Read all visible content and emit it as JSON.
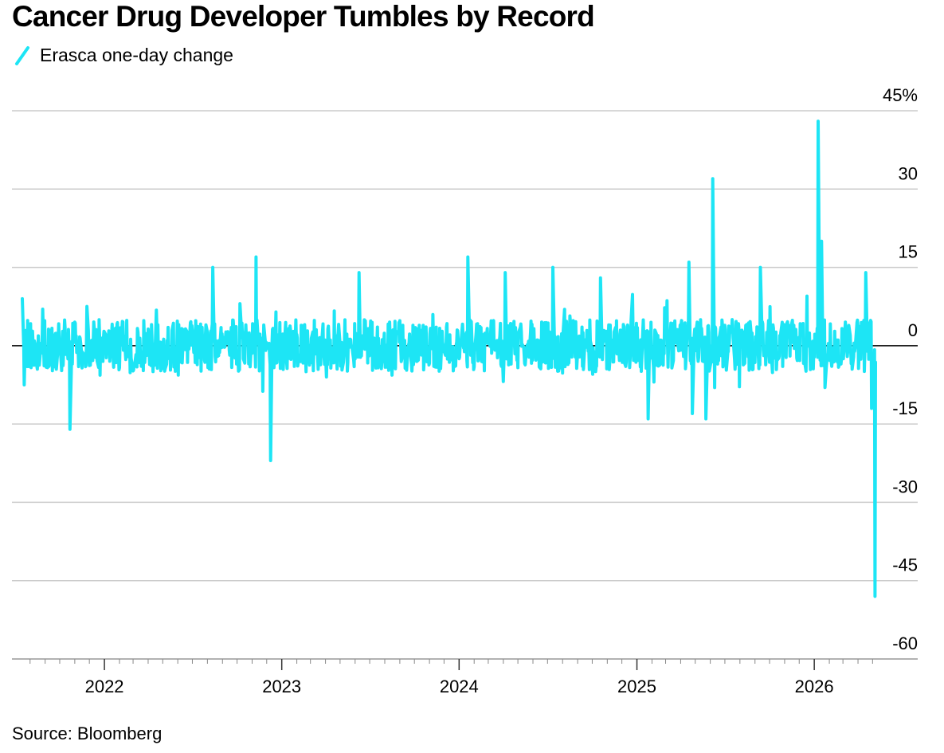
{
  "title": "Cancer Drug Developer Tumbles by Record",
  "source": "Source: Bloomberg",
  "chart_data": {
    "type": "line",
    "title": "Cancer Drug Developer Tumbles by Record",
    "xlabel": "",
    "ylabel": "",
    "series": [
      {
        "name": "Erasca one-day change",
        "color": "#1de5f5"
      }
    ],
    "y_ticks": [
      45,
      30,
      15,
      0,
      -15,
      -30,
      -45,
      -60
    ],
    "y_tick_labels": [
      "45%",
      "30",
      "15",
      "0",
      "-15",
      "-30",
      "-45",
      "-60"
    ],
    "ylim": [
      -60,
      45
    ],
    "y_axis_side": "right",
    "x_range": [
      "2021-07-16",
      "2026-05-07"
    ],
    "x_ticks": [
      "2022-01-01",
      "2023-01-01",
      "2024-01-01",
      "2025-01-01",
      "2026-01-01"
    ],
    "x_tick_labels": [
      "2022",
      "2023",
      "2024",
      "2025",
      "2026"
    ],
    "grid": "horizontal",
    "legend": "top-left",
    "noise_amplitude_pct": 5,
    "notable_points": [
      {
        "date": "2021-07-16",
        "value": 9
      },
      {
        "date": "2021-10-22",
        "value": -16
      },
      {
        "date": "2022-08-12",
        "value": 15
      },
      {
        "date": "2022-11-09",
        "value": 17
      },
      {
        "date": "2022-12-09",
        "value": -22
      },
      {
        "date": "2023-06-09",
        "value": 14
      },
      {
        "date": "2024-01-19",
        "value": 17
      },
      {
        "date": "2024-04-05",
        "value": 14
      },
      {
        "date": "2024-07-12",
        "value": 15
      },
      {
        "date": "2024-10-18",
        "value": 13
      },
      {
        "date": "2025-01-24",
        "value": -14
      },
      {
        "date": "2025-04-18",
        "value": 16
      },
      {
        "date": "2025-04-25",
        "value": -13
      },
      {
        "date": "2025-05-23",
        "value": -14
      },
      {
        "date": "2025-06-06",
        "value": 32
      },
      {
        "date": "2025-09-12",
        "value": 15
      },
      {
        "date": "2026-01-09",
        "value": 43
      },
      {
        "date": "2026-01-16",
        "value": 20
      },
      {
        "date": "2026-01-23",
        "value": -8
      },
      {
        "date": "2026-04-17",
        "value": 14
      },
      {
        "date": "2026-04-24",
        "value": 4
      },
      {
        "date": "2026-04-29",
        "value": -12
      },
      {
        "date": "2026-05-06",
        "value": -48
      }
    ]
  }
}
